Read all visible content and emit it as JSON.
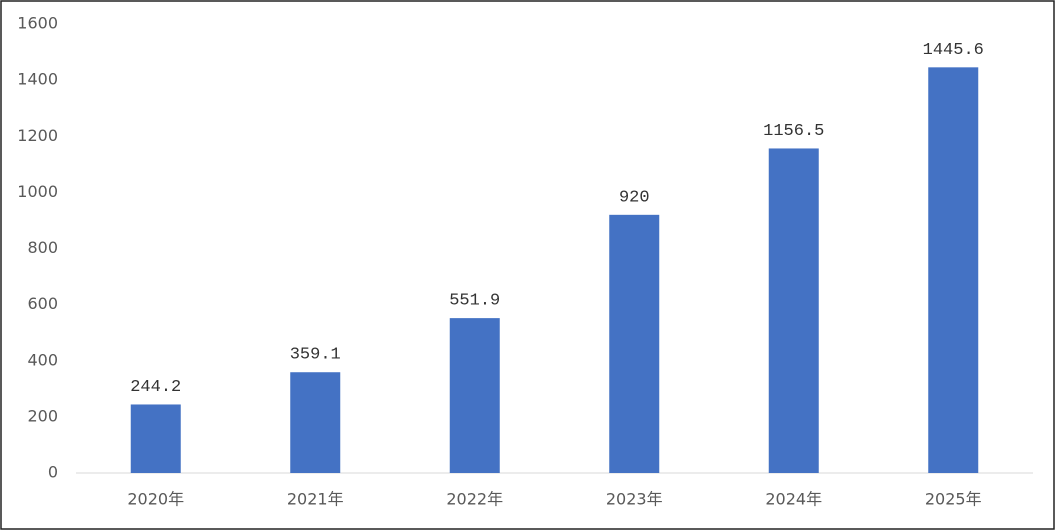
{
  "chart_data": {
    "type": "bar",
    "categories": [
      "2020年",
      "2021年",
      "2022年",
      "2023年",
      "2024年",
      "2025年"
    ],
    "values": [
      244.2,
      359.1,
      551.9,
      920,
      1156.5,
      1445.6
    ],
    "color": "#4472c4",
    "ylim": [
      0,
      1600
    ],
    "yticks": [
      0,
      200,
      400,
      600,
      800,
      1000,
      1200,
      1400,
      1600
    ],
    "grid": false
  }
}
